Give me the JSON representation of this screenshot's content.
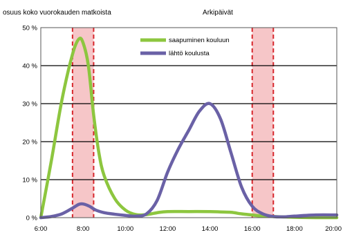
{
  "chart_data": {
    "type": "line",
    "title": "Arkipäivät",
    "ylabel": "osuus koko vuorokauden matkoista",
    "xlabel": "",
    "x_ticks": [
      "6:00",
      "8:00",
      "10:00",
      "12:00",
      "14:00",
      "16:00",
      "18:00",
      "20:00"
    ],
    "y_ticks": [
      "0 %",
      "10 %",
      "20 %",
      "30 %",
      "40 %",
      "50 %"
    ],
    "xlim": [
      6,
      20
    ],
    "ylim": [
      0,
      50
    ],
    "grid": "horizontal",
    "legend_position": "top-center",
    "highlight_bands": [
      {
        "from": 7.5,
        "to": 8.5
      },
      {
        "from": 16,
        "to": 17
      }
    ],
    "series": [
      {
        "name": "saapuminen kouluun",
        "color": "#8dc63f",
        "x": [
          6,
          6.5,
          7,
          7.5,
          7.8,
          8,
          8.25,
          8.5,
          8.75,
          9,
          9.5,
          10,
          10.5,
          11,
          11.5,
          12,
          13,
          14,
          14.5,
          15,
          15.5,
          16,
          16.5,
          17,
          18,
          19,
          19.5,
          20
        ],
        "y": [
          0,
          15,
          31,
          43,
          47,
          46,
          40,
          27,
          17,
          11,
          5,
          2,
          0.8,
          0.8,
          1.3,
          1.6,
          1.6,
          1.6,
          1.5,
          1.4,
          1,
          0.7,
          0.4,
          0.3,
          0.1,
          0,
          0,
          0
        ]
      },
      {
        "name": "lähtö koulusta",
        "color": "#6a61a6",
        "x": [
          6,
          6.5,
          7,
          7.5,
          7.8,
          8,
          8.3,
          8.6,
          9,
          9.5,
          10,
          10.5,
          11,
          11.5,
          12,
          12.5,
          13,
          13.5,
          14,
          14.5,
          15,
          15.5,
          16,
          16.5,
          17,
          17.5,
          18,
          19,
          20
        ],
        "y": [
          0,
          0.3,
          1,
          2.5,
          3.5,
          3.6,
          3,
          2,
          1.3,
          0.9,
          0.6,
          0.4,
          1,
          4.5,
          12,
          18,
          23,
          28,
          30,
          26,
          17,
          8,
          3,
          1,
          0.3,
          0.2,
          0.4,
          0.7,
          0.7
        ]
      }
    ]
  }
}
